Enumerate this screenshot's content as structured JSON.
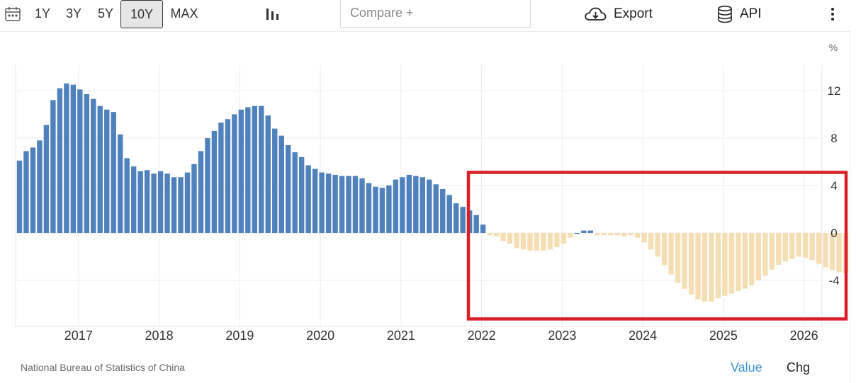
{
  "toolbar": {
    "calendar_icon": "calendar-icon",
    "ranges": [
      "1Y",
      "3Y",
      "5Y",
      "10Y",
      "MAX"
    ],
    "active_range": "10Y",
    "chart_type_icon": "bar-chart-icon",
    "compare_placeholder": "Compare +",
    "export_label": "Export",
    "export_icon": "cloud-download-icon",
    "api_label": "API",
    "api_icon": "database-icon",
    "more_icon": "more-vertical-icon"
  },
  "footer": {
    "source": "National Bureau of Statistics of China",
    "tab_value": "Value",
    "tab_chg": "Chg"
  },
  "colors": {
    "positive": "#4f81bd",
    "negative": "#f5deb3",
    "highlight": "#d9202a",
    "active_tab": "#3d94d1"
  },
  "chart_data": {
    "type": "bar",
    "unit": "%",
    "ylim": [
      -8,
      14
    ],
    "yticks": [
      12,
      8,
      4,
      0,
      -4
    ],
    "xtick_labels": [
      "2017",
      "2018",
      "2019",
      "2020",
      "2021",
      "2022",
      "2023",
      "2024",
      "2025",
      "2026"
    ],
    "grid": true,
    "highlight_box": true,
    "series": [
      {
        "start": "2016-04",
        "frequency": "monthly",
        "values": [
          6.1,
          6.9,
          7.2,
          7.8,
          9.1,
          11.2,
          12.2,
          12.6,
          12.5,
          12.1,
          11.7,
          11.3,
          10.7,
          10.4,
          10.2,
          8.3,
          6.3,
          5.6,
          5.2,
          5.3,
          5.0,
          5.2,
          5.0,
          4.7,
          4.7,
          5.1,
          5.8,
          6.9,
          8.0,
          8.6,
          9.3,
          9.6,
          10.0,
          10.4,
          10.6,
          10.7,
          10.7,
          9.9,
          8.8,
          8.2,
          7.4,
          6.8,
          6.4,
          5.7,
          5.4,
          5.1,
          5.0,
          4.9,
          4.8,
          4.8,
          4.8,
          4.6,
          4.2,
          3.9,
          3.8,
          4.0,
          4.5,
          4.7,
          4.9,
          4.8,
          4.7,
          4.5,
          4.1,
          3.7,
          3.2,
          2.5,
          2.2,
          1.9,
          1.5,
          0.7,
          -0.2,
          -0.3,
          -0.7,
          -0.9,
          -1.3,
          -1.4,
          -1.5,
          -1.5,
          -1.5,
          -1.4,
          -1.2,
          -0.9,
          -0.4,
          0.0,
          0.2,
          0.2,
          -0.2,
          -0.2,
          -0.2,
          -0.2,
          -0.3,
          -0.2,
          -0.4,
          -0.8,
          -1.4,
          -2.0,
          -2.7,
          -3.5,
          -4.2,
          -4.7,
          -5.2,
          -5.6,
          -5.8,
          -5.8,
          -5.5,
          -5.3,
          -5.1,
          -4.9,
          -4.7,
          -4.4,
          -4.0,
          -3.6,
          -3.1,
          -2.7,
          -2.4,
          -2.2,
          -2.0,
          -2.1,
          -2.3,
          -2.6,
          -2.9,
          -3.1,
          -3.3,
          -3.4
        ]
      }
    ]
  }
}
